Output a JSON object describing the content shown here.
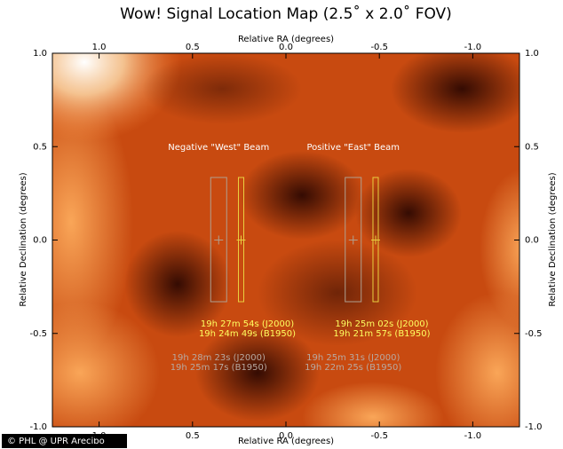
{
  "chart_data": {
    "type": "map",
    "title": "Wow! Signal Location Map (2.5˚ x 2.0˚ FOV)",
    "x_label": "Relative RA (degrees)",
    "y_label": "Relative Declination (degrees)",
    "xlim": [
      1.25,
      -1.25
    ],
    "ylim": [
      -1,
      1
    ],
    "xticks": [
      {
        "value": 1,
        "label": "1.0"
      },
      0.5,
      {
        "value": 0,
        "label": "0.0"
      },
      -0.5,
      {
        "value": -1,
        "label": "-1.0"
      }
    ],
    "yticks": [
      {
        "value": 1,
        "label": "1.0"
      },
      0.5,
      {
        "value": 0,
        "label": "0.0"
      },
      -0.5,
      {
        "value": -1,
        "label": "-1.0"
      }
    ],
    "beams": [
      {
        "name": "Negative \"West\" Beam",
        "x": [
          0.36,
          0.24
        ],
        "y": [
          0,
          0
        ],
        "colors": [
          "#b0a090",
          "#e8d040"
        ],
        "coordinates": [
          [
            "19h 28m 23s (J2000)",
            "19h 25m 17s (B1950)"
          ],
          [
            "19h 27m 54s (J2000)",
            "19h 24m 49s (B1950)"
          ]
        ]
      },
      {
        "name": "Positive \"East\" Beam",
        "x": [
          -0.36,
          -0.48
        ],
        "y": [
          0,
          0
        ],
        "colors": [
          "#b0a090",
          "#e8d040"
        ],
        "coordinates": [
          [
            "19h 25m 31s (J2000)",
            "19h 22m 25s (B1950)"
          ],
          [
            "19h 25m 02s (J2000)",
            "19h 21m 57s (B1950)"
          ]
        ]
      }
    ],
    "credit": "© PHL @ UPR Arecibo"
  }
}
